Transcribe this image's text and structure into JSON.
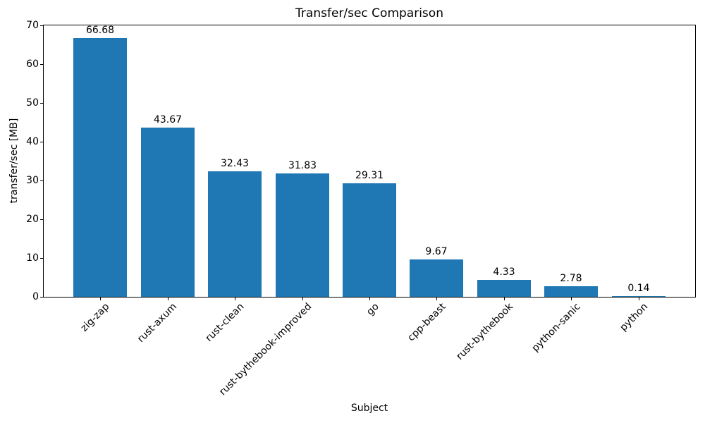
{
  "chart_data": {
    "type": "bar",
    "title": "Transfer/sec Comparison",
    "xlabel": "Subject",
    "ylabel": "transfer/sec [MB]",
    "categories": [
      "zig-zap",
      "rust-axum",
      "rust-clean",
      "rust-bythebook-improved",
      "go",
      "cpp-beast",
      "rust-bythebook",
      "python-sanic",
      "python"
    ],
    "values": [
      66.68,
      43.67,
      32.43,
      31.83,
      29.31,
      9.67,
      4.33,
      2.78,
      0.14
    ],
    "bar_labels": [
      "66.68",
      "43.67",
      "32.43",
      "31.83",
      "29.31",
      "9.67",
      "4.33",
      "2.78",
      "0.14"
    ],
    "ylim": [
      0,
      70
    ],
    "yticks": [
      0,
      10,
      20,
      30,
      40,
      50,
      60,
      70
    ],
    "xlim": [
      -0.84,
      8.84
    ],
    "bar_width_units": 0.8,
    "bar_color": "#1f77b4",
    "grid": false,
    "legend_position": "none",
    "x_tick_label_rotation_deg": 45
  }
}
